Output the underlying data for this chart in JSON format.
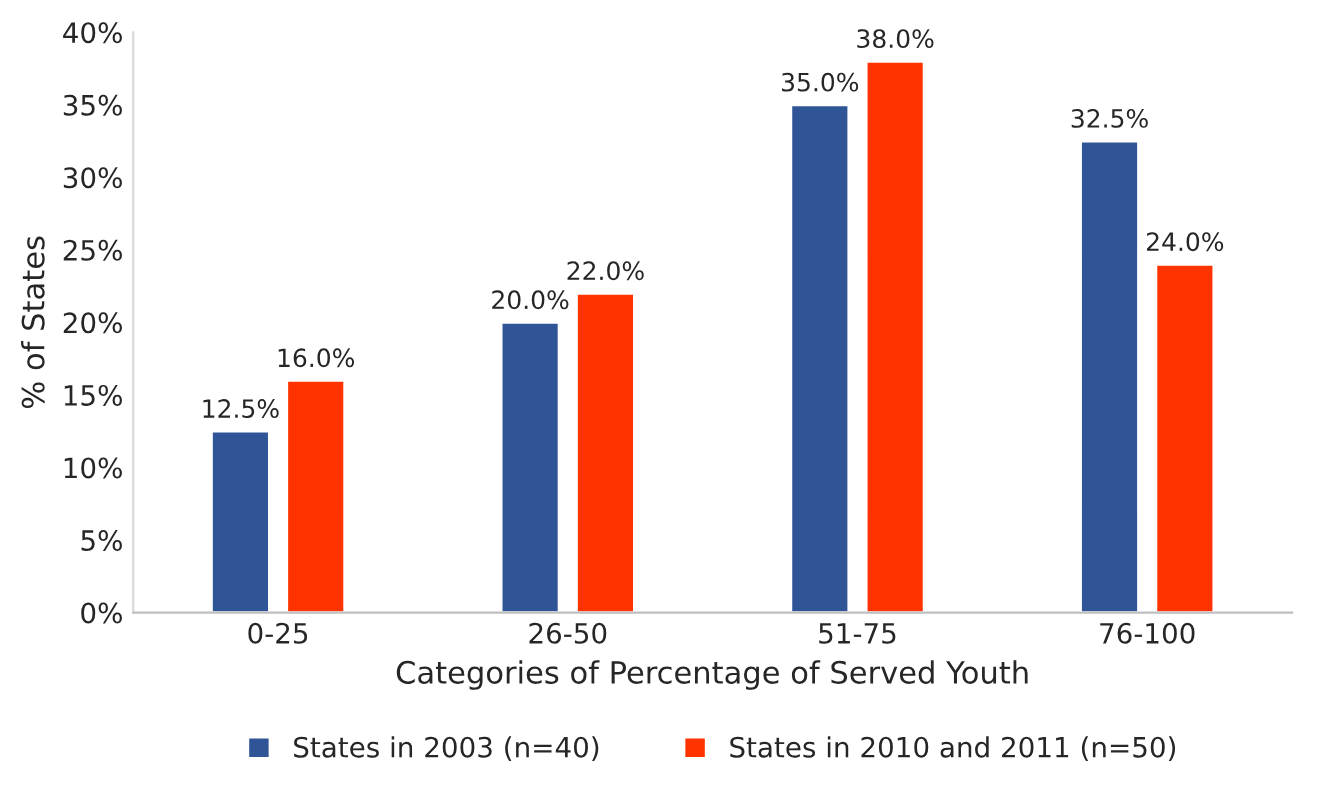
{
  "chart_data": {
    "type": "bar",
    "xlabel": "Categories of Percentage of Served Youth",
    "ylabel": "% of States",
    "categories": [
      "0-25",
      "26-50",
      "51-75",
      "76-100"
    ],
    "series": [
      {
        "name": "States in 2003 (n=40)",
        "color": "#2f5597",
        "values": [
          12.5,
          20.0,
          35.0,
          32.5
        ],
        "value_labels": [
          "12.5%",
          "20.0%",
          "35.0%",
          "32.5%"
        ]
      },
      {
        "name": "States in 2010 and 2011 (n=50)",
        "color": "#ff3300",
        "values": [
          16.0,
          22.0,
          38.0,
          24.0
        ],
        "value_labels": [
          "16.0%",
          "22.0%",
          "38.0%",
          "24.0%"
        ]
      }
    ],
    "ylim": [
      0,
      40
    ],
    "yticks": [
      {
        "value": 0,
        "label": "0%"
      },
      {
        "value": 5,
        "label": "5%"
      },
      {
        "value": 10,
        "label": "10%"
      },
      {
        "value": 15,
        "label": "15%"
      },
      {
        "value": 20,
        "label": "20%"
      },
      {
        "value": 25,
        "label": "25%"
      },
      {
        "value": 30,
        "label": "30%"
      },
      {
        "value": 35,
        "label": "35%"
      },
      {
        "value": 40,
        "label": "40%"
      }
    ],
    "grid": false,
    "legend": "bottom"
  }
}
